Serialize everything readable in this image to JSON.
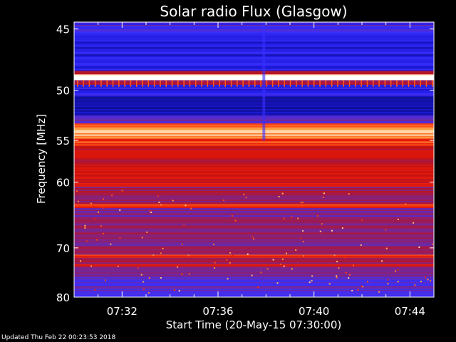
{
  "chart_data": {
    "type": "heatmap",
    "title": "Solar radio Flux (Glasgow)",
    "xlabel": "Start Time (20-May-15 07:30:00)",
    "ylabel": "Frequency [MHz]",
    "x_tick_labels": [
      "07:32",
      "07:36",
      "07:40",
      "07:44"
    ],
    "x_tick_values_min": [
      2,
      6,
      10,
      14
    ],
    "x_range_min": [
      0,
      15
    ],
    "y_tick_labels": [
      "45",
      "50",
      "55",
      "60",
      "70",
      "80"
    ],
    "y_tick_values": [
      45,
      50,
      55,
      60,
      70,
      80
    ],
    "y_range": [
      44.5,
      80
    ],
    "y_scale": "reciprocal",
    "colormap": [
      "#000000",
      "#0a0a70",
      "#1b18d8",
      "#3a2fff",
      "#6a2aa8",
      "#a01a50",
      "#c41212",
      "#e81a0a",
      "#ff5a1a",
      "#ffb050",
      "#ffffff"
    ],
    "frequency_bands": [
      {
        "from": 44.6,
        "to": 45.3,
        "level": 0.32
      },
      {
        "from": 45.3,
        "to": 48.3,
        "level": 0.22
      },
      {
        "from": 48.3,
        "to": 48.6,
        "level": 0.6
      },
      {
        "from": 48.6,
        "to": 49.1,
        "level": 1.0
      },
      {
        "from": 49.1,
        "to": 49.5,
        "level": 0.55
      },
      {
        "from": 49.5,
        "to": 50.5,
        "level": 0.26
      },
      {
        "from": 50.5,
        "to": 51.6,
        "level": 0.18
      },
      {
        "from": 51.6,
        "to": 52.4,
        "level": 0.14
      },
      {
        "from": 52.4,
        "to": 53.2,
        "level": 0.35
      },
      {
        "from": 53.2,
        "to": 53.6,
        "level": 0.8
      },
      {
        "from": 53.6,
        "to": 54.8,
        "level": 0.9
      },
      {
        "from": 54.8,
        "to": 55.6,
        "level": 0.76
      },
      {
        "from": 55.6,
        "to": 57.6,
        "level": 0.6
      },
      {
        "from": 57.6,
        "to": 60.6,
        "level": 0.64
      },
      {
        "from": 60.6,
        "to": 63.0,
        "level": 0.5
      },
      {
        "from": 63.0,
        "to": 63.6,
        "level": 0.74
      },
      {
        "from": 63.6,
        "to": 66.0,
        "level": 0.42
      },
      {
        "from": 66.0,
        "to": 68.5,
        "level": 0.46
      },
      {
        "from": 68.5,
        "to": 71.2,
        "level": 0.44
      },
      {
        "from": 71.2,
        "to": 71.8,
        "level": 0.74
      },
      {
        "from": 71.8,
        "to": 73.0,
        "level": 0.48
      },
      {
        "from": 73.0,
        "to": 73.5,
        "level": 0.7
      },
      {
        "from": 73.5,
        "to": 76.0,
        "level": 0.42
      },
      {
        "from": 76.0,
        "to": 77.5,
        "level": 0.34
      },
      {
        "from": 77.5,
        "to": 78.6,
        "level": 0.4
      },
      {
        "from": 78.6,
        "to": 80.0,
        "level": 0.26
      }
    ]
  },
  "footer": {
    "updated_text": "Updated Thu Feb 22 00:23:53 2018"
  }
}
